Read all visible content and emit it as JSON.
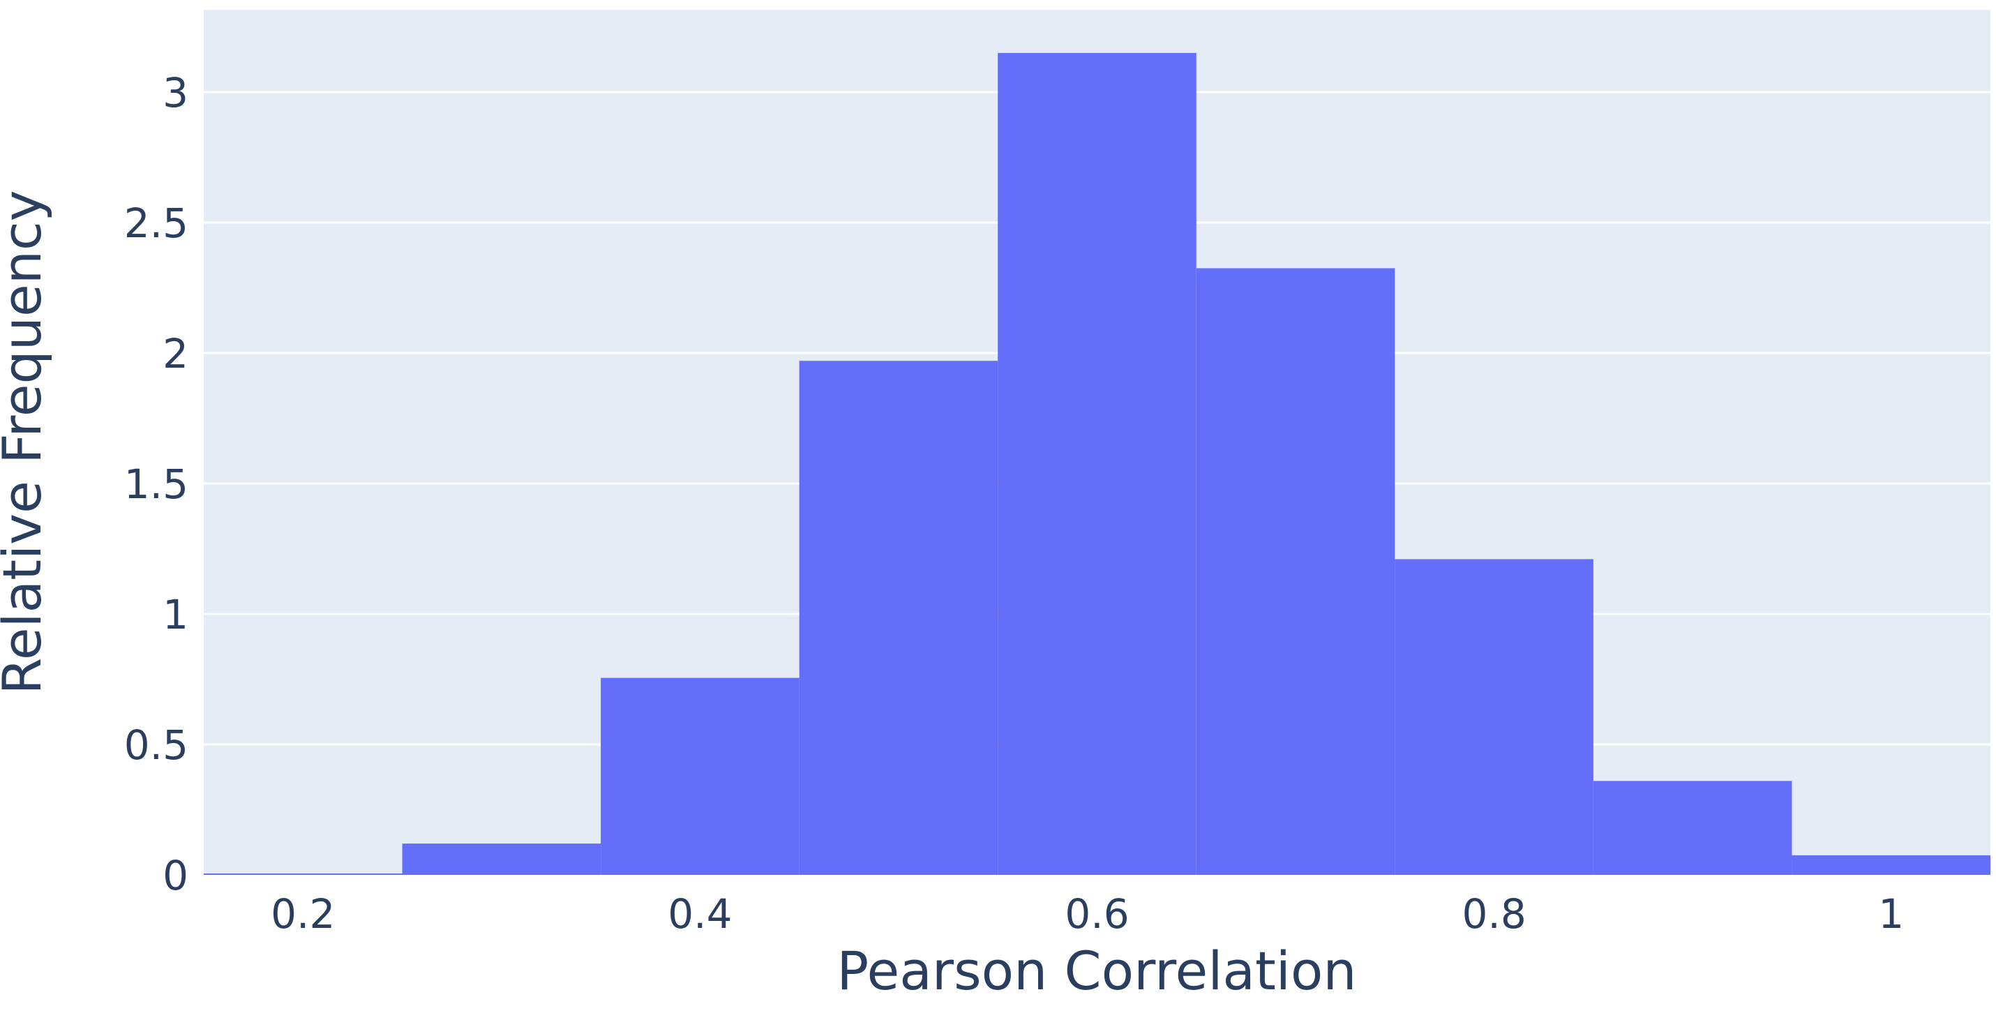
{
  "chart_data": {
    "type": "bar",
    "subtype": "histogram",
    "xlabel": "Pearson Correlation",
    "ylabel": "Relative Frequency",
    "xlim": [
      0.15,
      1.05
    ],
    "ylim": [
      0,
      3.3
    ],
    "xticks": [
      0.2,
      0.4,
      0.6,
      0.8,
      1
    ],
    "xtick_labels": [
      "0.2",
      "0.4",
      "0.6",
      "0.8",
      "1"
    ],
    "yticks": [
      0,
      0.5,
      1,
      1.5,
      2,
      2.5,
      3
    ],
    "ytick_labels": [
      "0",
      "0.5",
      "1",
      "1.5",
      "2",
      "2.5",
      "3"
    ],
    "bin_edges": [
      0.15,
      0.25,
      0.35,
      0.45,
      0.55,
      0.65,
      0.75,
      0.85,
      0.95,
      1.05
    ],
    "values": [
      0.005,
      0.12,
      0.755,
      1.97,
      3.15,
      2.325,
      1.21,
      0.36,
      0.075
    ],
    "grid": true,
    "legend": "none",
    "colors": {
      "bar": "#636efa",
      "plot_background": "#e5ecf6",
      "gridline": "#ffffff",
      "text": "#2a3f5f"
    }
  }
}
